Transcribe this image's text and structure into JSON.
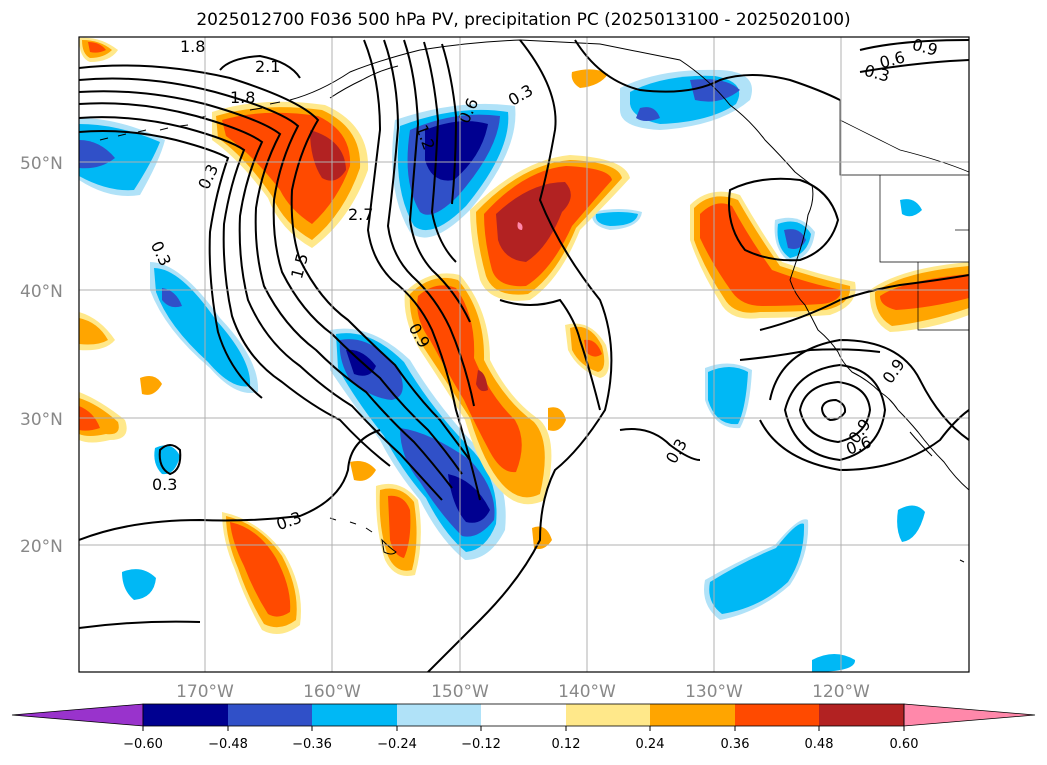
{
  "title": "2025012700 F036 500 hPa PV, precipitation PC (2025013100 - 2025020100)",
  "lat_labels": [
    "50°N",
    "40°N",
    "30°N",
    "20°N"
  ],
  "lon_labels": [
    "170°W",
    "160°W",
    "150°W",
    "140°W",
    "130°W",
    "120°W"
  ],
  "colorbar": {
    "ticks": [
      "−0.60",
      "−0.48",
      "−0.36",
      "−0.24",
      "−0.12",
      "0.12",
      "0.24",
      "0.36",
      "0.48",
      "0.60"
    ],
    "colors": [
      "#9933cc",
      "#000090",
      "#3050c8",
      "#00b8f5",
      "#b0e2f8",
      "#ffffff",
      "#ffe88a",
      "#ffa500",
      "#ff4a00",
      "#b22222",
      "#ff88aa"
    ]
  },
  "contour_labels": [
    "1.8",
    "2.1",
    "1.8",
    "0.3",
    "0.3",
    "2.7",
    "1.5",
    "1.2",
    "0.6",
    "0.3",
    "0.9",
    "0.3",
    "0.3",
    "0.3",
    "0.9",
    "0.6",
    "0.3",
    "0.9",
    "0.6",
    "0.9"
  ],
  "colors": {
    "axis": "#000000",
    "grid": "#b0b0b0",
    "coast": "#000000",
    "label": "#888888"
  }
}
